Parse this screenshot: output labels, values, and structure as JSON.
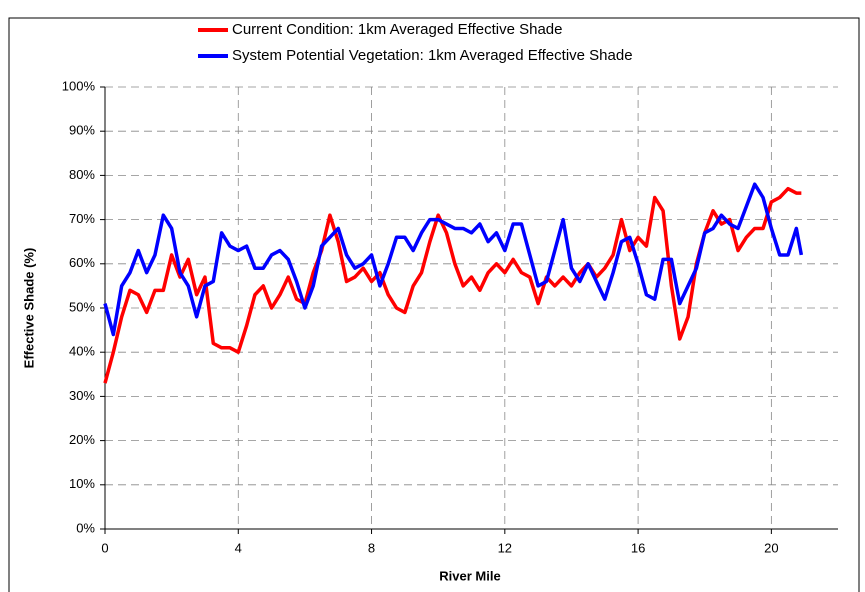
{
  "chart_data": {
    "type": "line",
    "xlabel": "River Mile",
    "ylabel": "Effective Shade (%)",
    "x": [
      0,
      0.25,
      0.5,
      0.75,
      1,
      1.25,
      1.5,
      1.75,
      2,
      2.25,
      2.5,
      2.75,
      3,
      3.25,
      3.5,
      3.75,
      4,
      4.25,
      4.5,
      4.75,
      5,
      5.25,
      5.5,
      5.75,
      6,
      6.25,
      6.5,
      6.75,
      7,
      7.25,
      7.5,
      7.75,
      8,
      8.25,
      8.5,
      8.75,
      9,
      9.25,
      9.5,
      9.75,
      10,
      10.25,
      10.5,
      10.75,
      11,
      11.25,
      11.5,
      11.75,
      12,
      12.25,
      12.5,
      12.75,
      13,
      13.25,
      13.5,
      13.75,
      14,
      14.25,
      14.5,
      14.75,
      15,
      15.25,
      15.5,
      15.75,
      16,
      16.25,
      16.5,
      16.75,
      17,
      17.25,
      17.5,
      17.75,
      18,
      18.25,
      18.5,
      18.75,
      19,
      19.25,
      19.5,
      19.75,
      20,
      20.25,
      20.5,
      20.75,
      20.9
    ],
    "series": [
      {
        "name": "Current Condition:  1km Averaged Effective Shade",
        "color": "#ff0000",
        "values": [
          33,
          40,
          48,
          54,
          53,
          49,
          54,
          54,
          62,
          57,
          61,
          53,
          57,
          42,
          41,
          41,
          40,
          46,
          53,
          55,
          50,
          53,
          57,
          52,
          51,
          58,
          63,
          71,
          65,
          56,
          57,
          59,
          56,
          58,
          53,
          50,
          49,
          55,
          58,
          65,
          71,
          67,
          60,
          55,
          57,
          54,
          58,
          60,
          58,
          61,
          58,
          57,
          51,
          57,
          55,
          57,
          55,
          58,
          60,
          57,
          59,
          62,
          70,
          63,
          66,
          64,
          75,
          72,
          55,
          43,
          48,
          60,
          67,
          72,
          69,
          70,
          63,
          66,
          68,
          68,
          74,
          75,
          77,
          76,
          76
        ]
      },
      {
        "name": "System Potential Vegetation:  1km Averaged Effective Shade",
        "color": "#0000ff",
        "values": [
          51,
          44,
          55,
          58,
          63,
          58,
          62,
          71,
          68,
          58,
          55,
          48,
          55,
          56,
          67,
          64,
          63,
          64,
          59,
          59,
          62,
          63,
          61,
          56,
          50,
          55,
          64,
          66,
          68,
          62,
          59,
          60,
          62,
          55,
          60,
          66,
          66,
          63,
          67,
          70,
          70,
          69,
          68,
          68,
          67,
          69,
          65,
          67,
          63,
          69,
          69,
          62,
          55,
          56,
          63,
          70,
          59,
          56,
          60,
          56,
          52,
          58,
          65,
          66,
          60,
          53,
          52,
          61,
          61,
          51,
          55,
          59,
          67,
          68,
          71,
          69,
          68,
          73,
          78,
          75,
          68,
          62,
          62,
          68,
          62
        ]
      }
    ],
    "xlim": [
      0,
      22
    ],
    "xticks": [
      0,
      4,
      8,
      12,
      16,
      20
    ],
    "ylim": [
      0,
      100
    ],
    "yticks": [
      {
        "value": 0,
        "label": "0%"
      },
      {
        "value": 10,
        "label": "10%"
      },
      {
        "value": 20,
        "label": "20%"
      },
      {
        "value": 30,
        "label": "30%"
      },
      {
        "value": 40,
        "label": "40%"
      },
      {
        "value": 50,
        "label": "50%"
      },
      {
        "value": 60,
        "label": "60%"
      },
      {
        "value": 70,
        "label": "70%"
      },
      {
        "value": 80,
        "label": "80%"
      },
      {
        "value": 90,
        "label": "90%"
      },
      {
        "value": 100,
        "label": "100%"
      }
    ],
    "grid": true
  }
}
